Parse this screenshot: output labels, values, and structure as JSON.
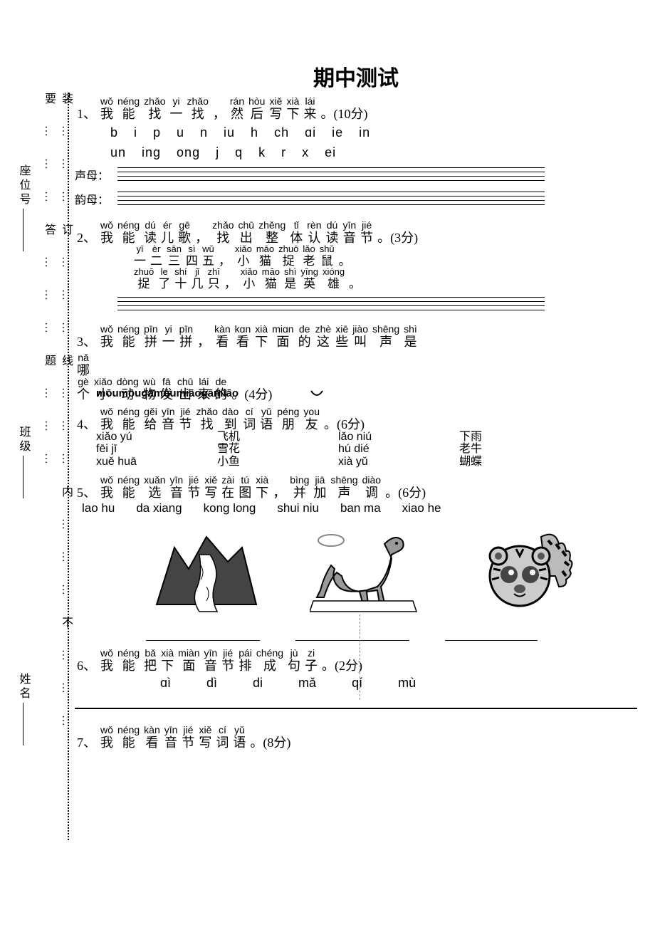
{
  "title": "期中测试",
  "binding_text": "装………订………线………内………不………要………答………题………",
  "side_labels": [
    "座位号",
    "班级",
    "姓名"
  ],
  "q1": {
    "num": "1、",
    "pinyin": [
      "wǒ",
      "néng",
      "zhǎo",
      "yi",
      "zhǎo",
      "",
      "rán",
      "hòu",
      "xiě",
      "xià",
      "lái"
    ],
    "chars": [
      "我",
      "能",
      "找",
      "一",
      "找",
      "，",
      "然",
      "后",
      "写",
      "下",
      "来",
      "。(10分)"
    ],
    "row1": "b  i  p  u  n  iu  h  ch  ɑi  ie  in",
    "row2": "un  ing  ong  j  q  k  r  x  ei",
    "lab1": "声母：",
    "lab2": "韵母："
  },
  "q2": {
    "num": "2、",
    "pinyin": [
      "wǒ",
      "néng",
      "dú",
      "ér",
      "gē",
      "",
      "zhǎo",
      "chū",
      "zhěng",
      "tǐ",
      "rèn",
      "dú",
      "yīn",
      "jié"
    ],
    "chars": [
      "我",
      "能",
      "读",
      "儿",
      "歌",
      "，",
      "找",
      "出",
      "整",
      "体",
      "认",
      "读",
      "音",
      "节",
      "。(3分)"
    ],
    "l1p": [
      "yī",
      "èr",
      "sān",
      "sì",
      "wǔ",
      "",
      "xiǎo",
      "māo",
      "zhuō",
      "lǎo",
      "shǔ"
    ],
    "l1c": [
      "一",
      "二",
      "三",
      "四",
      "五",
      "，",
      "小",
      "猫",
      "捉",
      "老",
      "鼠",
      "。"
    ],
    "l2p": [
      "zhuō",
      "le",
      "shí",
      "jǐ",
      "zhī",
      "",
      "xiǎo",
      "māo",
      "shì",
      "yīng",
      "xióng"
    ],
    "l2c": [
      "捉",
      "了",
      "十",
      "几",
      "只",
      "，",
      "小",
      "猫",
      "是",
      "英",
      "雄",
      "。"
    ]
  },
  "q3": {
    "num": "3、",
    "pinyin": [
      "wǒ",
      "néng",
      "pīn",
      "yi",
      "pīn",
      "",
      "kàn",
      "kɑn",
      "xià",
      "miɑn",
      "de",
      "zhè",
      "xiē",
      "jiào",
      "shēng",
      "shì"
    ],
    "chars": [
      "我",
      "能",
      "拼",
      "一",
      "拼",
      "，",
      "看",
      "看",
      "下",
      "面",
      "的",
      "这",
      "些",
      "叫",
      "声",
      "是"
    ],
    "l2p": [
      "nǎ"
    ],
    "l2c": [
      "哪"
    ],
    "l3p": [
      "gè",
      "xiǎo",
      "dòng",
      "wù",
      "fā",
      "chū",
      "lái",
      "de"
    ],
    "l3c": [
      "个",
      "小",
      "动",
      "物",
      "发",
      "出",
      "来",
      "的",
      "。(4分)"
    ],
    "overlap": "mōumōugāmōumiāogāmiāo"
  },
  "q4": {
    "num": "4、",
    "pinyin": [
      "wǒ",
      "néng",
      "gěi",
      "yīn",
      "jié",
      "zhǎo",
      "dào",
      "cí",
      "yǔ",
      "péng",
      "you"
    ],
    "chars": [
      "我",
      "能",
      "给",
      "音",
      "节",
      "找",
      "到",
      "词",
      "语",
      "朋",
      "友",
      "。(6分)"
    ],
    "col1": [
      "xiǎo yú",
      "fēi jī",
      "xuě huā"
    ],
    "col2": [
      "飞机",
      "雪花",
      "小鱼"
    ],
    "col3": [
      "lǎo niú",
      "hú dié",
      "xià yǔ"
    ],
    "col4": [
      "下雨",
      "老牛",
      "蝴蝶"
    ]
  },
  "q5": {
    "num": "5、",
    "pinyin": [
      "wǒ",
      "néng",
      "xuǎn",
      "yīn",
      "jié",
      "xiě",
      "zài",
      "tú",
      "xià",
      "",
      "bìng",
      "jiā",
      "shēng",
      "diào"
    ],
    "chars": [
      "我",
      "能",
      "选",
      "音",
      "节",
      "写",
      "在",
      "图",
      "下",
      "，",
      "并",
      "加",
      "声",
      "调",
      "。(6分)"
    ],
    "opts": [
      "lao hu",
      "da xiang",
      "kong long",
      "shui niu",
      "ban ma",
      "xiao he"
    ]
  },
  "q6": {
    "num": "6、",
    "pinyin": [
      "wǒ",
      "néng",
      "bǎ",
      "xià",
      "miàn",
      "yīn",
      "jié",
      "pái",
      "chéng",
      "jù",
      "zi"
    ],
    "chars": [
      "我",
      "能",
      "把",
      "下",
      "面",
      "音",
      "节",
      "排",
      "成",
      "句",
      "子",
      "。(2分)"
    ],
    "opts": [
      "ɑì",
      "dì",
      "di",
      "mǎ",
      "qí",
      "mù"
    ]
  },
  "q7": {
    "num": "7、",
    "pinyin": [
      "wǒ",
      "néng",
      "kàn",
      "yīn",
      "jié",
      "xiě",
      "cí",
      "yǔ"
    ],
    "chars": [
      "我",
      "能",
      "看",
      "音",
      "节",
      "写",
      "词",
      "语",
      "。(8分)"
    ]
  }
}
